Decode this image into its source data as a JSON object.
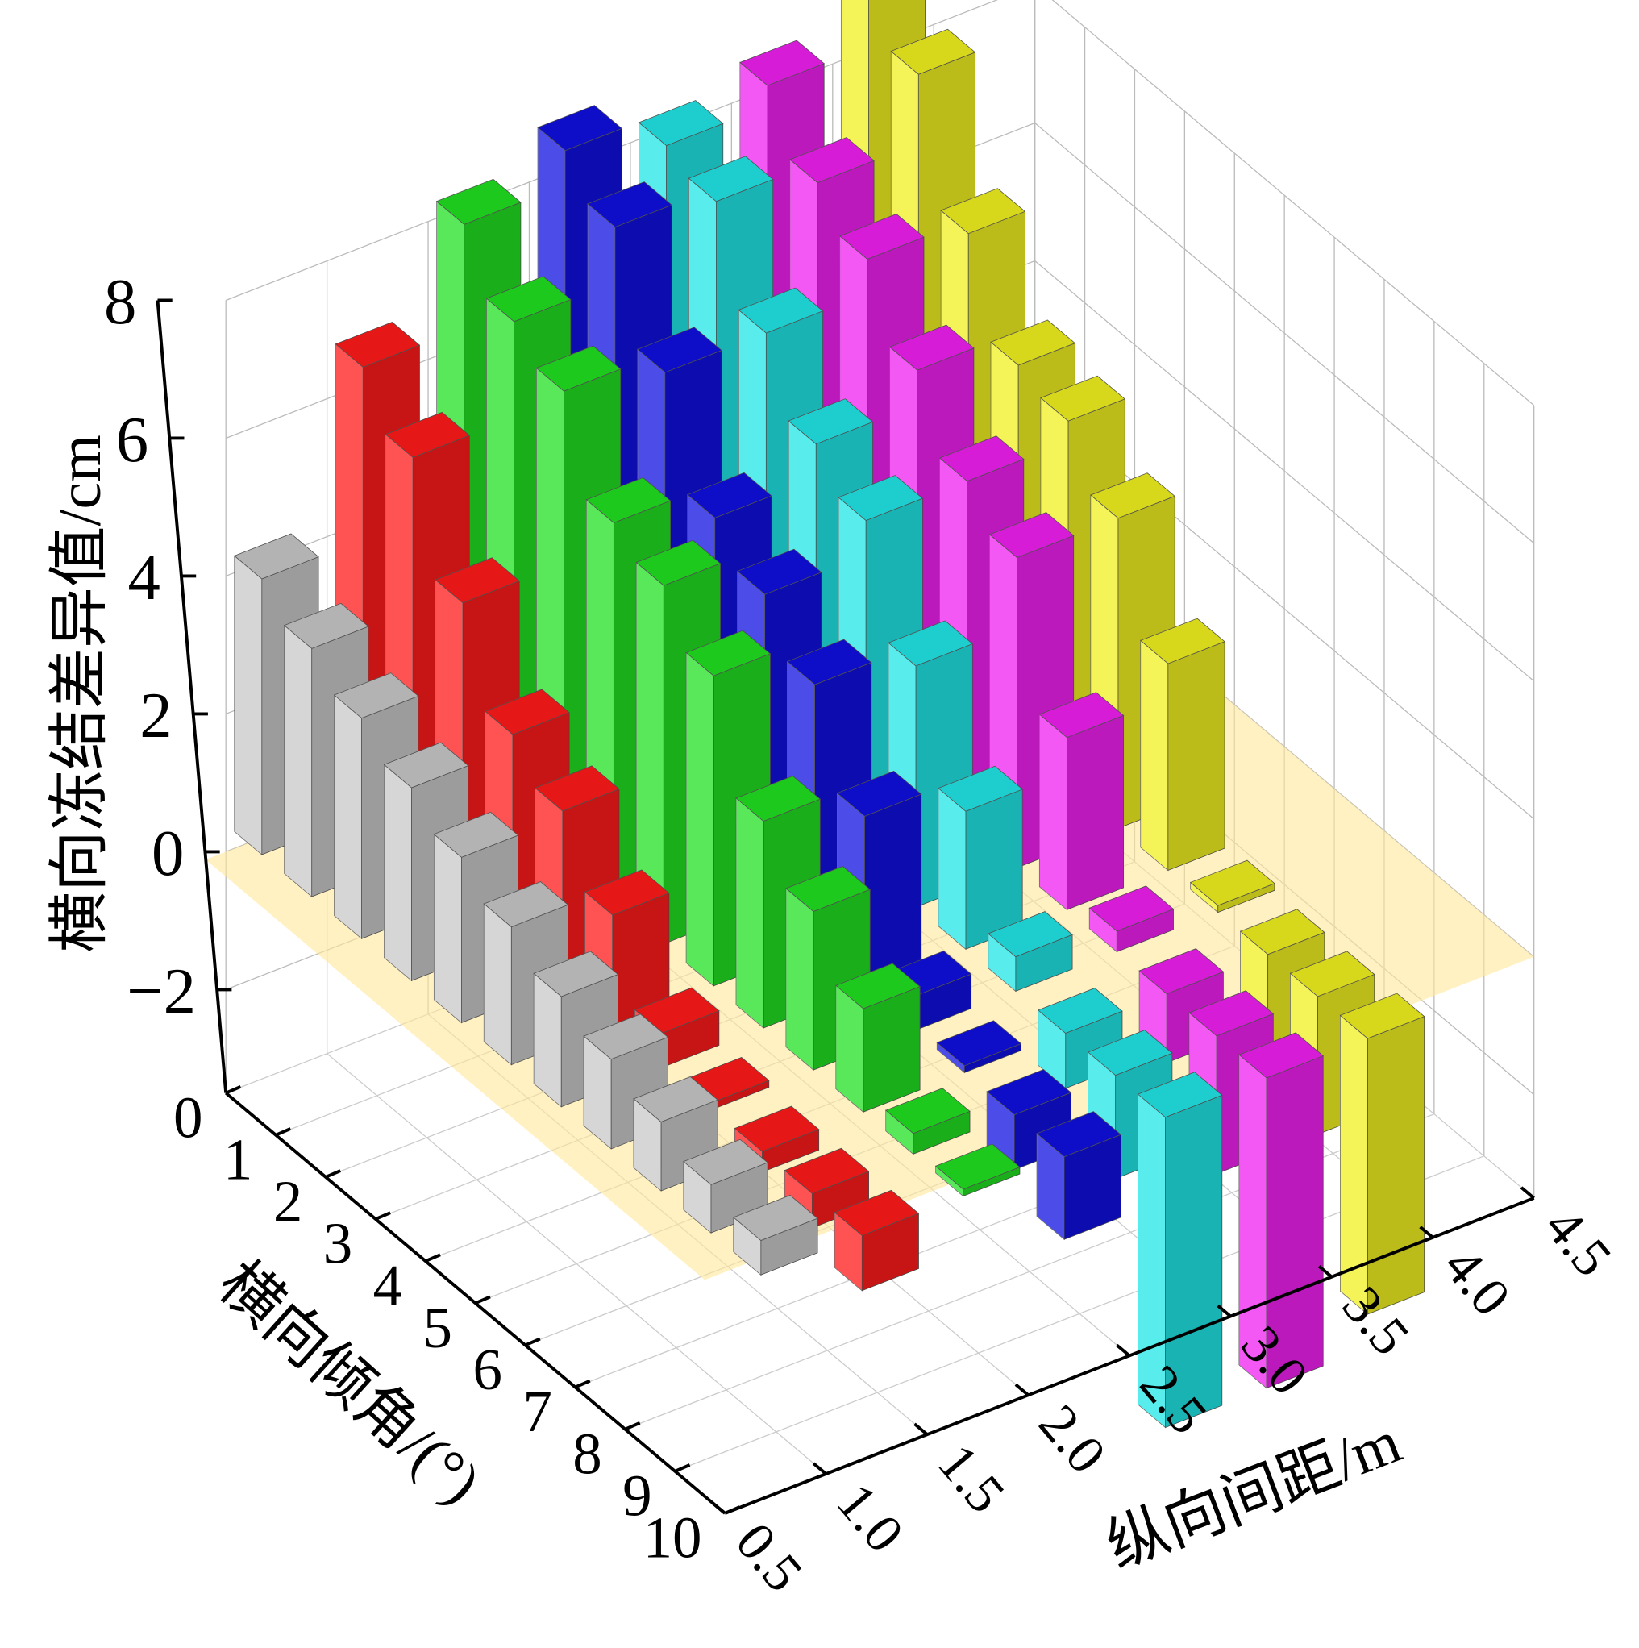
{
  "chart_data": {
    "type": "bar3d",
    "zlabel": "横向冻结差异值/cm",
    "xlabel": "横向倾角/(°)",
    "ylabel": "纵向间距/m",
    "x_ticks": [
      "0",
      "1",
      "2",
      "3",
      "4",
      "5",
      "6",
      "7",
      "8",
      "9",
      "10"
    ],
    "y_ticks": [
      "0.5",
      "1.0",
      "1.5",
      "2.0",
      "2.5",
      "3.0",
      "3.5",
      "4.0",
      "4.5"
    ],
    "z_ticks": [
      "-2",
      "0",
      "2",
      "4",
      "6",
      "8"
    ],
    "xlim": [
      0,
      10
    ],
    "ylim": [
      0.5,
      4.5
    ],
    "zlim": [
      -3.5,
      8
    ],
    "reference_plane_z": 0,
    "x": [
      0,
      1,
      2,
      3,
      4,
      5,
      6,
      7,
      8,
      9,
      10
    ],
    "series": [
      {
        "name": "1.0",
        "color": "#c8c8c8",
        "values": [
          4.0,
          3.6,
          3.2,
          2.8,
          2.4,
          2.0,
          1.6,
          1.3,
          1.0,
          0.7,
          0.5
        ]
      },
      {
        "name": "1.5",
        "color": "#ff1a1a",
        "values": [
          6.5,
          5.8,
          4.3,
          3.0,
          2.5,
          1.6,
          0.5,
          0.1,
          -0.3,
          -0.5,
          -0.8
        ]
      },
      {
        "name": "2.0",
        "color": "#22e022",
        "values": [
          8.0,
          7.2,
          6.8,
          5.5,
          5.2,
          4.5,
          3.0,
          2.3,
          1.5,
          0.3,
          0.1
        ]
      },
      {
        "name": "2.5",
        "color": "#1010e0",
        "values": [
          8.5,
          8.0,
          6.5,
          5.0,
          4.5,
          3.8,
          2.5,
          0.5,
          0.1,
          -0.8,
          -1.2
        ]
      },
      {
        "name": "3.0",
        "color": "#22e6e6",
        "values": [
          8.0,
          7.8,
          6.5,
          5.5,
          5.0,
          3.5,
          2.0,
          0.5,
          -0.8,
          -1.5,
          -4.5
        ]
      },
      {
        "name": "3.5",
        "color": "#f020f0",
        "values": [
          8.3,
          7.5,
          7.0,
          6.0,
          5.0,
          4.5,
          2.5,
          0.3,
          -1.0,
          -2.0,
          -4.5
        ]
      },
      {
        "name": "4.0",
        "color": "#f0f020",
        "values": [
          9.0,
          8.5,
          6.8,
          5.5,
          5.3,
          4.5,
          3.0,
          0.1,
          -1.5,
          -2.0,
          -4.0
        ]
      }
    ]
  }
}
